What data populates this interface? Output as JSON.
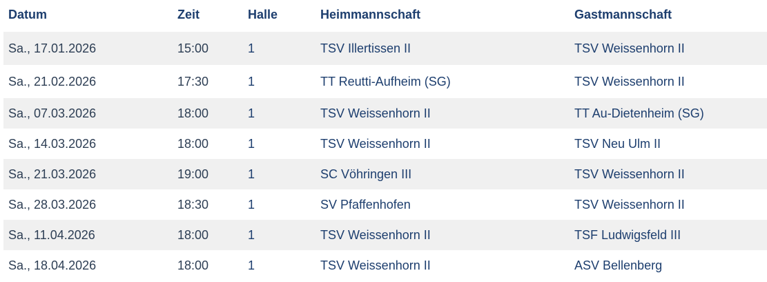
{
  "table": {
    "headers": {
      "datum": "Datum",
      "zeit": "Zeit",
      "halle": "Halle",
      "heim": "Heimmannschaft",
      "gast": "Gastmannschaft"
    },
    "rows": [
      {
        "datum": "Sa., 17.01.2026",
        "zeit": "15:00",
        "halle": "1",
        "heim": "TSV Illertissen II",
        "gast": "TSV Weissenhorn II"
      },
      {
        "datum": "Sa., 21.02.2026",
        "zeit": "17:30",
        "halle": "1",
        "heim": "TT Reutti-Aufheim (SG)",
        "gast": "TSV Weissenhorn II"
      },
      {
        "datum": "Sa., 07.03.2026",
        "zeit": "18:00",
        "halle": "1",
        "heim": "TSV Weissenhorn II",
        "gast": "TT Au-Dietenheim (SG)"
      },
      {
        "datum": "Sa., 14.03.2026",
        "zeit": "18:00",
        "halle": "1",
        "heim": "TSV Weissenhorn II",
        "gast": "TSV Neu Ulm II"
      },
      {
        "datum": "Sa., 21.03.2026",
        "zeit": "19:00",
        "halle": "1",
        "heim": "SC Vöhringen III",
        "gast": "TSV Weissenhorn II"
      },
      {
        "datum": "Sa., 28.03.2026",
        "zeit": "18:30",
        "halle": "1",
        "heim": "SV Pfaffenhofen",
        "gast": "TSV Weissenhorn II"
      },
      {
        "datum": "Sa., 11.04.2026",
        "zeit": "18:00",
        "halle": "1",
        "heim": "TSV Weissenhorn II",
        "gast": "TSF Ludwigsfeld III"
      },
      {
        "datum": "Sa., 18.04.2026",
        "zeit": "18:00",
        "halle": "1",
        "heim": "TSV Weissenhorn II",
        "gast": "ASV Bellenberg"
      }
    ]
  },
  "colors": {
    "header_text": "#1d3e6e",
    "body_text": "#2d3e54",
    "stripe": "#f0f0f0"
  }
}
